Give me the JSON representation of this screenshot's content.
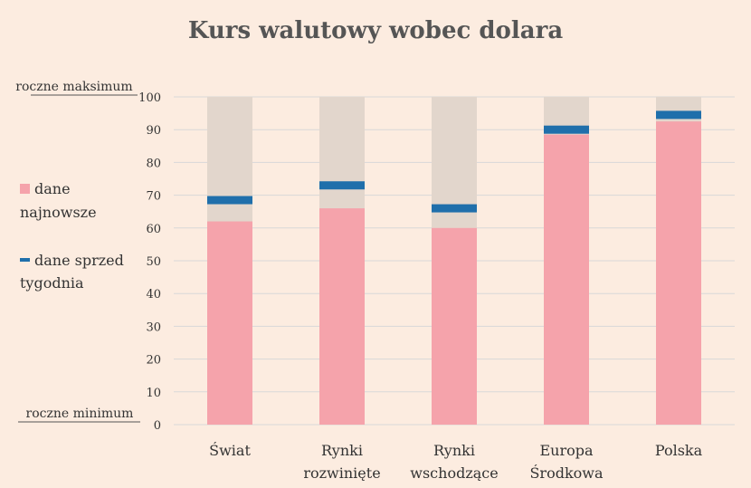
{
  "chart_data": {
    "type": "bar",
    "title": "Kurs walutowy wobec dolara",
    "categories": [
      [
        "Świat"
      ],
      [
        "Rynki",
        "rozwinięte"
      ],
      [
        "Rynki",
        "wschodzące"
      ],
      [
        "Europa",
        "Środkowa"
      ],
      [
        "Polska"
      ]
    ],
    "series": [
      {
        "name": "dane najnowsze",
        "values": [
          62,
          66,
          60,
          88.5,
          92.5
        ]
      },
      {
        "name": "dane sprzed tygodnia",
        "values": [
          68.5,
          73,
          66,
          90,
          94.5
        ]
      }
    ],
    "range_max": 100,
    "ylim": [
      0,
      100
    ],
    "yticks": [
      0,
      10,
      20,
      30,
      40,
      50,
      60,
      70,
      80,
      90,
      100
    ],
    "y_top_label": "roczne maksimum",
    "y_bottom_label": "roczne minimum",
    "grid": true,
    "legend_position": "left",
    "colors": {
      "latest": "#f5a3ab",
      "week_ago": "#1f6fab",
      "range": "#e2d6cc",
      "grid": "#d8d8d8",
      "background": "#fcece0"
    }
  },
  "legend": {
    "latest_lines": [
      "dane",
      "najnowsze"
    ],
    "week_ago_lines": [
      "dane sprzed",
      "tygodnia"
    ]
  }
}
